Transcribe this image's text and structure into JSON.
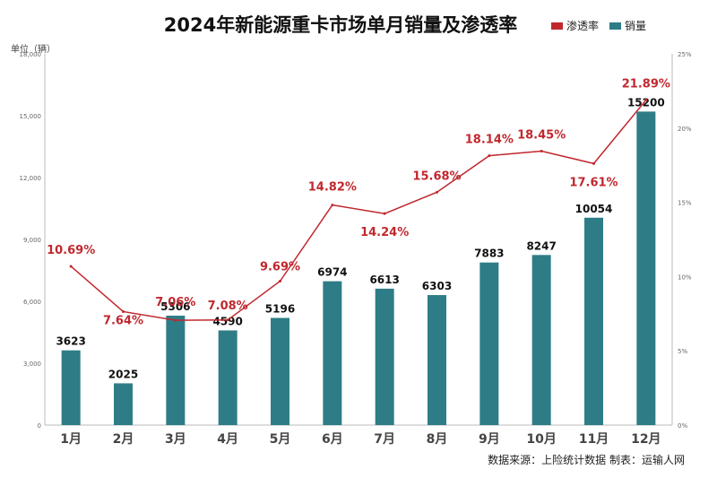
{
  "header": {
    "title": "2024年新能源重卡市场单月销量及渗透率",
    "unit_label": "单位（辆）"
  },
  "legend": [
    {
      "label": "渗透率",
      "color": "#c0282e"
    },
    {
      "label": "销量",
      "color": "#2e7d86"
    }
  ],
  "footer": {
    "source": "数据来源：上险统计数据 制表：运输人网"
  },
  "chart_data": {
    "type": "bar",
    "categories": [
      "1月",
      "2月",
      "3月",
      "4月",
      "5月",
      "6月",
      "7月",
      "8月",
      "9月",
      "10月",
      "11月",
      "12月"
    ],
    "series": [
      {
        "name": "销量",
        "type": "bar",
        "axis": "left",
        "color": "#2e7d86",
        "values": [
          3623,
          2025,
          5306,
          4590,
          5196,
          6974,
          6613,
          6303,
          7883,
          8247,
          10054,
          15200
        ]
      },
      {
        "name": "渗透率",
        "type": "line",
        "axis": "right",
        "color": "#c0282e",
        "values": [
          10.69,
          7.64,
          7.06,
          7.08,
          9.69,
          14.82,
          14.24,
          15.68,
          18.14,
          18.45,
          17.61,
          21.89
        ],
        "labels": [
          "10.69%",
          "7.64%",
          "7.06%",
          "7.08%",
          "9.69%",
          "14.82%",
          "14.24%",
          "15.68%",
          "18.14%",
          "18.45%",
          "17.61%",
          "21.89%"
        ]
      }
    ],
    "y_left": {
      "min": 0,
      "max": 18000,
      "ticks": [
        "0",
        "3,000",
        "6,000",
        "9,000",
        "12,000",
        "15,000",
        "18,000"
      ]
    },
    "y_right": {
      "min": 0,
      "max": 25,
      "ticks": [
        "0%",
        "5%",
        "10%",
        "15%",
        "20%",
        "25%"
      ]
    },
    "grid": false,
    "legend_position": "top-right"
  }
}
